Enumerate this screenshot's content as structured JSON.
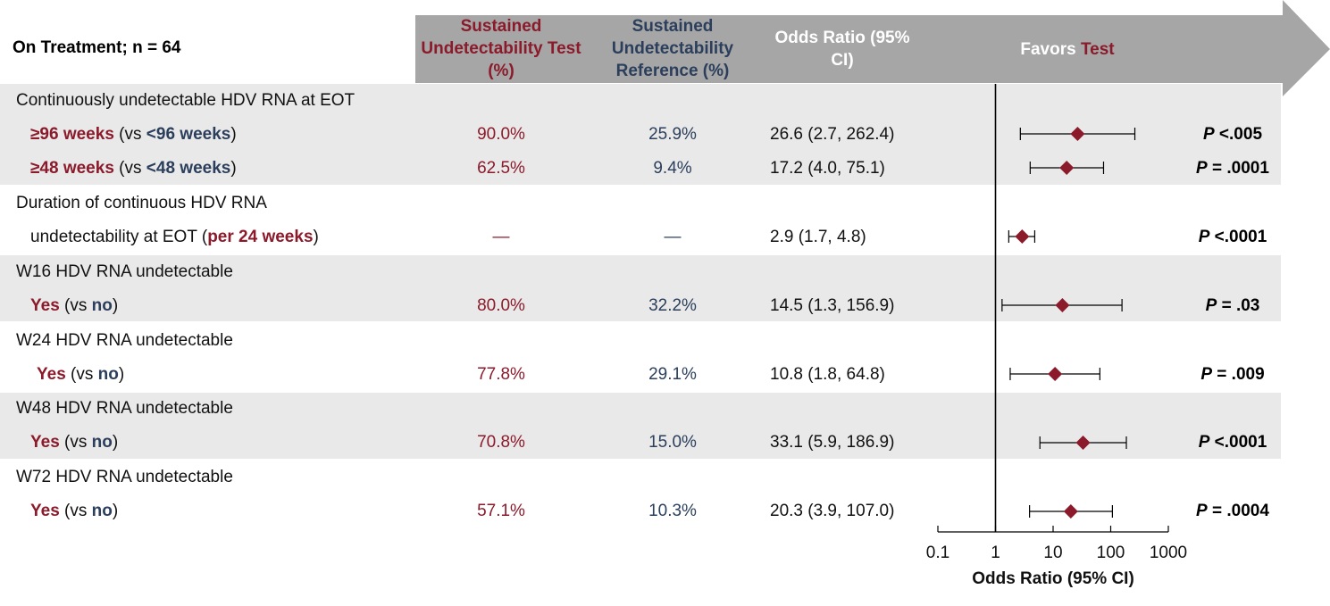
{
  "header": {
    "title": "On Treatment; n = 64",
    "col_test": "Sustained Undetectability Test (%)",
    "col_ref": "Sustained Undetectability Reference (%)",
    "col_or": "Odds Ratio (95% CI)",
    "favors_prefix": "Favors",
    "favors_accent": "Test"
  },
  "rows": {
    "r1": {
      "group": "Continuously undetectable HDV RNA at EOT",
      "a": {
        "lead": "≥96 weeks",
        "mid": " (vs ",
        "cmp": "<96 weeks",
        "tail": ")",
        "test": "90.0%",
        "ref": "25.9%",
        "or": "26.6 (2.7, 262.4)",
        "p_label": "P",
        "p_value": " <.005"
      },
      "b": {
        "lead": "≥48 weeks",
        "mid": " (vs ",
        "cmp": "<48 weeks",
        "tail": ")",
        "test": "62.5%",
        "ref": "9.4%",
        "or": "17.2 (4.0, 75.1)",
        "p_label": "P",
        "p_value": " = .0001"
      }
    },
    "r2": {
      "group": "Duration of continuous HDV RNA",
      "line2_prefix": "undetectability at EOT (",
      "line2_accent": "per 24 weeks",
      "line2_tail": ")",
      "test": "—",
      "ref": "—",
      "or": "2.9 (1.7, 4.8)",
      "p_label": "P",
      "p_value": " <.0001"
    },
    "r3": {
      "group": "W16 HDV RNA undetectable",
      "lead": "Yes",
      "mid": " (vs ",
      "cmp": "no",
      "tail": ")",
      "test": "80.0%",
      "ref": "32.2%",
      "or": "14.5 (1.3, 156.9)",
      "p_label": "P",
      "p_value": " = .03"
    },
    "r4": {
      "group": "W24 HDV RNA undetectable",
      "lead": "Yes",
      "mid": " (vs ",
      "cmp": "no",
      "tail": ")",
      "test": "77.8%",
      "ref": "29.1%",
      "or": "10.8 (1.8, 64.8)",
      "p_label": "P",
      "p_value": " = .009"
    },
    "r5": {
      "group": "W48 HDV RNA undetectable",
      "lead": "Yes",
      "mid": " (vs ",
      "cmp": "no",
      "tail": ")",
      "test": "70.8%",
      "ref": "15.0%",
      "or": "33.1 (5.9, 186.9)",
      "p_label": "P",
      "p_value": " <.0001"
    },
    "r6": {
      "group": "W72 HDV RNA undetectable",
      "lead": "Yes",
      "mid": " (vs ",
      "cmp": "no",
      "tail": ")",
      "test": "57.1%",
      "ref": "10.3%",
      "or": "20.3 (3.9, 107.0)",
      "p_label": "P",
      "p_value": " = .0004"
    }
  },
  "colors": {
    "test": "#8B1A2B",
    "reference": "#2B3F5C",
    "header_bg": "#a6a6a6",
    "band": "#e9e9e9",
    "marker": "#8B1A2B"
  },
  "chart_data": {
    "type": "forest",
    "xlabel": "Odds Ratio (95% CI)",
    "xscale": "log",
    "xlim": [
      0.1,
      1000
    ],
    "xticks": [
      0.1,
      1,
      10,
      100,
      1000
    ],
    "xtick_labels": [
      "0.1",
      "1",
      "10",
      "100",
      "1000"
    ],
    "reference_line": 1,
    "points": [
      {
        "label": "≥96 weeks (vs <96 weeks)",
        "or": 26.6,
        "lo": 2.7,
        "hi": 262.4
      },
      {
        "label": "≥48 weeks (vs <48 weeks)",
        "or": 17.2,
        "lo": 4.0,
        "hi": 75.1
      },
      {
        "label": "undetectability at EOT (per 24 weeks)",
        "or": 2.9,
        "lo": 1.7,
        "hi": 4.8
      },
      {
        "label": "W16 Yes (vs no)",
        "or": 14.5,
        "lo": 1.3,
        "hi": 156.9
      },
      {
        "label": "W24 Yes (vs no)",
        "or": 10.8,
        "lo": 1.8,
        "hi": 64.8
      },
      {
        "label": "W48 Yes (vs no)",
        "or": 33.1,
        "lo": 5.9,
        "hi": 186.9
      },
      {
        "label": "W72 Yes (vs no)",
        "or": 20.3,
        "lo": 3.9,
        "hi": 107.0
      }
    ]
  }
}
